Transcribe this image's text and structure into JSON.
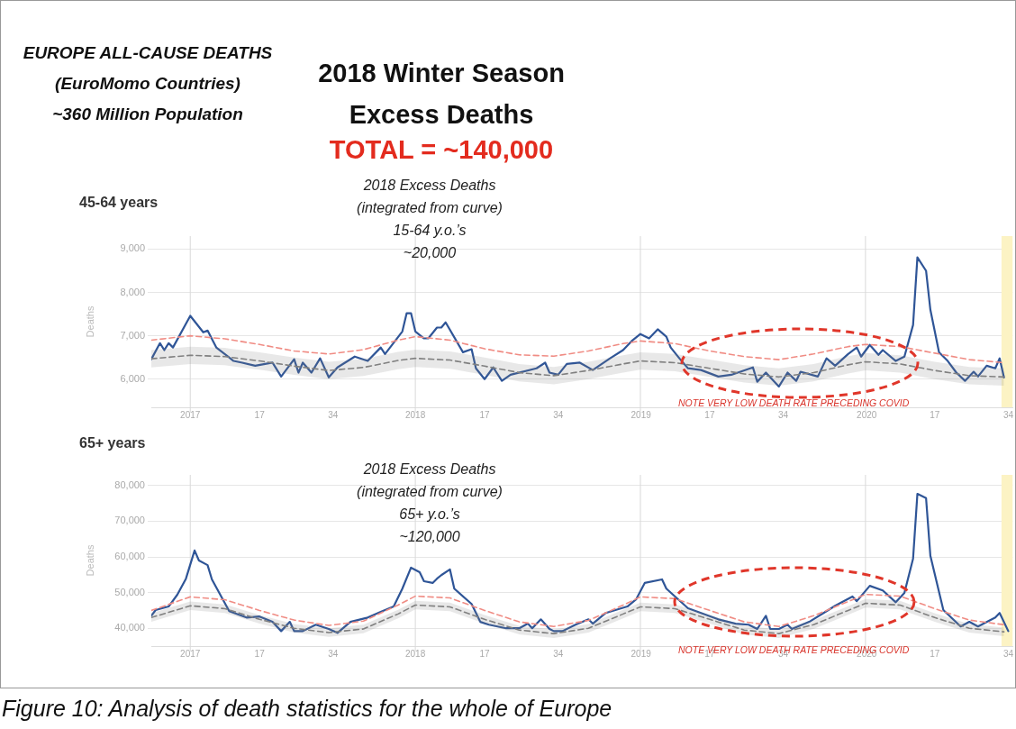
{
  "chart_data": [
    {
      "type": "other",
      "title": "2018 Winter Season Excess Deaths",
      "subtitle": "TOTAL = ~140,000",
      "annotations": [
        "EUROPE ALL-CAUSE DEATHS\n(EuroMomo Countries)\n~360 Million Population",
        "Figure 10: Analysis of death statistics for the whole of Europe"
      ]
    },
    {
      "type": "line",
      "title": "45-64 years",
      "ylabel": "Deaths",
      "xlim": [
        "2016-10-31",
        "2020-08-24"
      ],
      "xticks": [
        {
          "value": "2017-01-02",
          "label": "2017"
        },
        {
          "value": "2017-04-24",
          "label": "17"
        },
        {
          "value": "2017-08-21",
          "label": "34"
        },
        {
          "value": "2018-01-01",
          "label": "2018"
        },
        {
          "value": "2018-04-23",
          "label": "17"
        },
        {
          "value": "2018-08-20",
          "label": "34"
        },
        {
          "value": "2019-01-01",
          "label": "2019"
        },
        {
          "value": "2019-04-22",
          "label": "17"
        },
        {
          "value": "2019-08-19",
          "label": "34"
        },
        {
          "value": "2020-01-01",
          "label": "2020"
        },
        {
          "value": "2020-04-20",
          "label": "17"
        },
        {
          "value": "2020-08-17",
          "label": "34"
        }
      ],
      "ylim": [
        5350,
        9300
      ],
      "yticks": [
        {
          "value": 6000,
          "label": "6,000"
        },
        {
          "value": 7000,
          "label": "7,000"
        },
        {
          "value": 8000,
          "label": "8,000"
        },
        {
          "value": 9000,
          "label": "9,000"
        }
      ],
      "grid": "y",
      "marker": "none",
      "line_style": "solid",
      "ref_lines": [
        {
          "axis": "x",
          "value": "2017-01-02",
          "color": "#d9d9d9"
        },
        {
          "axis": "x",
          "value": "2018-01-01",
          "color": "#d9d9d9"
        },
        {
          "axis": "x",
          "value": "2018-12-31",
          "color": "#d9d9d9"
        },
        {
          "axis": "x",
          "value": "2019-12-30",
          "color": "#d9d9d9"
        }
      ],
      "bands": [
        {
          "axis": "x",
          "from": "2020-08-06",
          "to": "2020-08-24",
          "color": "#fcf3c4"
        }
      ],
      "annotations": [
        "2018 Excess Deaths\n(integrated from curve)\n15-64 y.o.’s\n~20,000",
        "NOTE VERY LOW DEATH RATE PRECEDING COVID"
      ],
      "series": [
        {
          "color": "#808080",
          "line_style": "dashed",
          "x": [
            "2016-10-31",
            "2017-01-02",
            "2017-02-27",
            "2017-04-24",
            "2017-06-19",
            "2017-08-14",
            "2017-10-09",
            "2017-12-04",
            "2018-01-01",
            "2018-02-26",
            "2018-04-23",
            "2018-06-18",
            "2018-08-13",
            "2018-10-08",
            "2018-12-03",
            "2018-12-31",
            "2019-02-25",
            "2019-04-22",
            "2019-06-17",
            "2019-08-12",
            "2019-10-07",
            "2019-12-02",
            "2019-12-30",
            "2020-02-24",
            "2020-04-20",
            "2020-06-15",
            "2020-08-10"
          ],
          "values": [
            6470,
            6550,
            6520,
            6420,
            6300,
            6200,
            6270,
            6430,
            6480,
            6440,
            6300,
            6150,
            6080,
            6200,
            6350,
            6420,
            6380,
            6250,
            6120,
            6050,
            6150,
            6330,
            6400,
            6350,
            6200,
            6080,
            6050
          ],
          "lower": [
            6270,
            6350,
            6320,
            6220,
            6100,
            6000,
            6070,
            6230,
            6280,
            6240,
            6100,
            5950,
            5880,
            6000,
            6150,
            6220,
            6180,
            6050,
            5920,
            5850,
            5950,
            6130,
            6200,
            6150,
            6000,
            5880,
            5850
          ],
          "upper": [
            6670,
            6750,
            6720,
            6620,
            6500,
            6400,
            6470,
            6630,
            6680,
            6640,
            6500,
            6350,
            6280,
            6400,
            6550,
            6620,
            6580,
            6450,
            6320,
            6250,
            6350,
            6530,
            6600,
            6550,
            6400,
            6280,
            6250
          ]
        },
        {
          "color": "#f08c84",
          "line_style": "dashed",
          "x": [
            "2016-10-31",
            "2017-01-02",
            "2017-02-27",
            "2017-04-24",
            "2017-06-19",
            "2017-08-14",
            "2017-10-09",
            "2017-12-04",
            "2018-01-01",
            "2018-02-26",
            "2018-04-23",
            "2018-06-18",
            "2018-08-13",
            "2018-10-08",
            "2018-12-03",
            "2018-12-31",
            "2019-02-25",
            "2019-04-22",
            "2019-06-17",
            "2019-08-12",
            "2019-10-07",
            "2019-12-02",
            "2019-12-30",
            "2020-02-24",
            "2020-04-20",
            "2020-06-15",
            "2020-08-10"
          ],
          "values": [
            6900,
            7000,
            6930,
            6800,
            6650,
            6580,
            6680,
            6900,
            6980,
            6900,
            6700,
            6560,
            6530,
            6650,
            6820,
            6880,
            6820,
            6650,
            6520,
            6450,
            6580,
            6750,
            6800,
            6750,
            6600,
            6450,
            6380
          ]
        },
        {
          "color": "#2f5597",
          "x": [
            "2016-10-31",
            "2016-11-14",
            "2016-11-21",
            "2016-11-28",
            "2016-12-05",
            "2017-01-02",
            "2017-01-23",
            "2017-01-30",
            "2017-02-13",
            "2017-03-13",
            "2017-03-27",
            "2017-04-17",
            "2017-05-15",
            "2017-05-29",
            "2017-06-19",
            "2017-06-26",
            "2017-07-03",
            "2017-07-17",
            "2017-07-31",
            "2017-08-14",
            "2017-08-28",
            "2017-09-25",
            "2017-10-16",
            "2017-11-06",
            "2017-11-13",
            "2017-12-11",
            "2017-12-18",
            "2017-12-25",
            "2018-01-01",
            "2018-01-15",
            "2018-01-22",
            "2018-02-05",
            "2018-02-12",
            "2018-02-19",
            "2018-03-19",
            "2018-04-02",
            "2018-04-09",
            "2018-04-23",
            "2018-05-07",
            "2018-05-21",
            "2018-06-04",
            "2018-07-16",
            "2018-07-30",
            "2018-08-06",
            "2018-08-20",
            "2018-09-03",
            "2018-09-24",
            "2018-10-15",
            "2018-11-12",
            "2018-12-03",
            "2018-12-17",
            "2018-12-31",
            "2019-01-14",
            "2019-01-28",
            "2019-02-11",
            "2019-02-18",
            "2019-03-04",
            "2019-03-18",
            "2019-04-08",
            "2019-05-06",
            "2019-05-27",
            "2019-07-01",
            "2019-07-08",
            "2019-07-22",
            "2019-08-12",
            "2019-08-26",
            "2019-09-09",
            "2019-09-16",
            "2019-10-14",
            "2019-10-28",
            "2019-11-11",
            "2019-12-02",
            "2019-12-16",
            "2019-12-23",
            "2020-01-06",
            "2020-01-20",
            "2020-01-27",
            "2020-02-17",
            "2020-03-02",
            "2020-03-16",
            "2020-03-23",
            "2020-04-06",
            "2020-04-13",
            "2020-04-27",
            "2020-05-11",
            "2020-05-25",
            "2020-06-08",
            "2020-06-22",
            "2020-06-29",
            "2020-07-13",
            "2020-07-27",
            "2020-08-03",
            "2020-08-10"
          ],
          "values": [
            6460,
            6830,
            6670,
            6830,
            6730,
            7460,
            7080,
            7120,
            6730,
            6420,
            6380,
            6310,
            6380,
            6060,
            6460,
            6150,
            6380,
            6150,
            6480,
            6040,
            6270,
            6520,
            6420,
            6730,
            6580,
            7100,
            7520,
            7520,
            7100,
            6940,
            6940,
            7190,
            7190,
            7310,
            6620,
            6690,
            6250,
            6000,
            6270,
            5960,
            6100,
            6250,
            6380,
            6150,
            6100,
            6350,
            6380,
            6210,
            6480,
            6670,
            6880,
            7040,
            6940,
            7150,
            6980,
            6730,
            6480,
            6250,
            6210,
            6060,
            6100,
            6270,
            5940,
            6150,
            5830,
            6150,
            5960,
            6170,
            6060,
            6480,
            6310,
            6580,
            6730,
            6520,
            6790,
            6560,
            6670,
            6420,
            6520,
            7250,
            8810,
            8500,
            7600,
            6620,
            6420,
            6150,
            5960,
            6170,
            6060,
            6310,
            6250,
            6480,
            6040
          ]
        }
      ]
    },
    {
      "type": "line",
      "title": "65+ years",
      "ylabel": "Deaths",
      "xlim": [
        "2016-10-31",
        "2020-08-24"
      ],
      "xticks": [
        {
          "value": "2017-01-02",
          "label": "2017"
        },
        {
          "value": "2017-04-24",
          "label": "17"
        },
        {
          "value": "2017-08-21",
          "label": "34"
        },
        {
          "value": "2018-01-01",
          "label": "2018"
        },
        {
          "value": "2018-04-23",
          "label": "17"
        },
        {
          "value": "2018-08-20",
          "label": "34"
        },
        {
          "value": "2019-01-01",
          "label": "2019"
        },
        {
          "value": "2019-04-22",
          "label": "17"
        },
        {
          "value": "2019-08-19",
          "label": "34"
        },
        {
          "value": "2020-01-01",
          "label": "2020"
        },
        {
          "value": "2020-04-20",
          "label": "17"
        },
        {
          "value": "2020-08-17",
          "label": "34"
        }
      ],
      "ylim": [
        35000,
        83000
      ],
      "yticks": [
        {
          "value": 40000,
          "label": "40,000"
        },
        {
          "value": 50000,
          "label": "50,000"
        },
        {
          "value": 60000,
          "label": "60,000"
        },
        {
          "value": 70000,
          "label": "70,000"
        },
        {
          "value": 80000,
          "label": "80,000"
        }
      ],
      "grid": "y",
      "marker": "none",
      "line_style": "solid",
      "ref_lines": [
        {
          "axis": "x",
          "value": "2017-01-02",
          "color": "#d9d9d9"
        },
        {
          "axis": "x",
          "value": "2018-01-01",
          "color": "#d9d9d9"
        },
        {
          "axis": "x",
          "value": "2018-12-31",
          "color": "#d9d9d9"
        },
        {
          "axis": "x",
          "value": "2019-12-30",
          "color": "#d9d9d9"
        }
      ],
      "bands": [
        {
          "axis": "x",
          "from": "2020-08-06",
          "to": "2020-08-24",
          "color": "#fcf3c4"
        }
      ],
      "annotations": [
        "2018 Excess Deaths\n(integrated from curve)\n65+ y.o.’s\n~120,000",
        "NOTE VERY LOW DEATH RATE PRECEDING COVID"
      ],
      "series": [
        {
          "color": "#808080",
          "line_style": "dashed",
          "x": [
            "2016-10-31",
            "2017-01-02",
            "2017-02-27",
            "2017-04-24",
            "2017-06-19",
            "2017-08-14",
            "2017-10-09",
            "2017-12-04",
            "2018-01-01",
            "2018-02-26",
            "2018-04-23",
            "2018-06-18",
            "2018-08-13",
            "2018-10-08",
            "2018-12-03",
            "2018-12-31",
            "2019-02-25",
            "2019-04-22",
            "2019-06-17",
            "2019-08-12",
            "2019-10-07",
            "2019-12-02",
            "2019-12-30",
            "2020-02-24",
            "2020-04-20",
            "2020-06-15",
            "2020-08-10"
          ],
          "values": [
            43000,
            46300,
            45500,
            42500,
            40000,
            38800,
            39800,
            44000,
            46500,
            46000,
            42500,
            39500,
            38500,
            40000,
            44000,
            46000,
            45500,
            42500,
            39500,
            38500,
            41000,
            45000,
            47000,
            46500,
            43000,
            40000,
            39000
          ],
          "lower": [
            41800,
            45100,
            44300,
            41300,
            38800,
            37600,
            38600,
            42800,
            45300,
            44800,
            41300,
            38300,
            37300,
            38800,
            42800,
            44800,
            44300,
            41300,
            38300,
            37300,
            39800,
            43800,
            45800,
            45300,
            41800,
            38800,
            37800
          ],
          "upper": [
            44200,
            47500,
            46700,
            43700,
            41200,
            40000,
            41000,
            45200,
            47700,
            47200,
            43700,
            40700,
            39700,
            41200,
            45200,
            47200,
            46700,
            43700,
            40700,
            39700,
            42200,
            46200,
            48200,
            47700,
            44200,
            41200,
            40200
          ]
        },
        {
          "color": "#f08c84",
          "line_style": "dashed",
          "x": [
            "2016-10-31",
            "2017-01-02",
            "2017-02-27",
            "2017-04-24",
            "2017-06-19",
            "2017-08-14",
            "2017-10-09",
            "2017-12-04",
            "2018-01-01",
            "2018-02-26",
            "2018-04-23",
            "2018-06-18",
            "2018-08-13",
            "2018-10-08",
            "2018-12-03",
            "2018-12-31",
            "2019-02-25",
            "2019-04-22",
            "2019-06-17",
            "2019-08-12",
            "2019-10-07",
            "2019-12-02",
            "2019-12-30",
            "2020-02-24",
            "2020-04-20",
            "2020-06-15",
            "2020-08-10"
          ],
          "values": [
            45000,
            48800,
            48000,
            45000,
            42300,
            40800,
            42000,
            46500,
            49000,
            48500,
            45000,
            41800,
            40500,
            42200,
            46500,
            48800,
            48300,
            45000,
            41800,
            40500,
            43500,
            47500,
            49500,
            49000,
            45500,
            42300,
            41000
          ]
        },
        {
          "color": "#2f5597",
          "x": [
            "2016-10-31",
            "2016-11-07",
            "2016-11-28",
            "2016-12-12",
            "2016-12-26",
            "2017-01-09",
            "2017-01-16",
            "2017-01-30",
            "2017-02-06",
            "2017-03-06",
            "2017-04-03",
            "2017-04-24",
            "2017-05-15",
            "2017-05-29",
            "2017-06-12",
            "2017-06-19",
            "2017-07-03",
            "2017-07-24",
            "2017-08-14",
            "2017-08-28",
            "2017-09-18",
            "2017-10-16",
            "2017-11-06",
            "2017-11-27",
            "2017-12-11",
            "2017-12-25",
            "2018-01-08",
            "2018-01-15",
            "2018-01-29",
            "2018-02-05",
            "2018-02-12",
            "2018-02-26",
            "2018-03-05",
            "2018-04-02",
            "2018-04-16",
            "2018-04-30",
            "2018-05-28",
            "2018-06-18",
            "2018-07-02",
            "2018-07-09",
            "2018-07-23",
            "2018-08-06",
            "2018-08-13",
            "2018-08-27",
            "2018-09-17",
            "2018-10-08",
            "2018-10-15",
            "2018-11-05",
            "2018-12-10",
            "2018-12-24",
            "2019-01-07",
            "2019-02-04",
            "2019-02-11",
            "2019-03-18",
            "2019-04-08",
            "2019-05-06",
            "2019-06-03",
            "2019-06-24",
            "2019-07-08",
            "2019-07-22",
            "2019-07-29",
            "2019-08-12",
            "2019-08-26",
            "2019-09-02",
            "2019-09-30",
            "2019-10-28",
            "2019-11-11",
            "2019-12-09",
            "2019-12-16",
            "2020-01-06",
            "2020-01-27",
            "2020-02-17",
            "2020-03-02",
            "2020-03-16",
            "2020-03-23",
            "2020-04-06",
            "2020-04-13",
            "2020-05-04",
            "2020-06-01",
            "2020-06-15",
            "2020-06-29",
            "2020-07-27",
            "2020-08-03",
            "2020-08-17"
          ],
          "values": [
            43500,
            45100,
            46100,
            49400,
            53900,
            61800,
            59000,
            57700,
            53700,
            44800,
            43000,
            43300,
            41800,
            39200,
            41800,
            39200,
            39200,
            41000,
            39800,
            38700,
            41800,
            43000,
            44600,
            46100,
            51100,
            57000,
            55700,
            53200,
            52700,
            53900,
            54900,
            56500,
            51100,
            46800,
            41800,
            41000,
            40000,
            40000,
            41300,
            40000,
            42500,
            39800,
            39200,
            39200,
            41000,
            42500,
            41300,
            44300,
            46100,
            48100,
            52700,
            53700,
            51100,
            45600,
            44300,
            42500,
            41300,
            41000,
            39800,
            43500,
            39800,
            39800,
            41000,
            39800,
            41800,
            44800,
            46300,
            48900,
            47600,
            51900,
            50600,
            47300,
            49900,
            59500,
            77700,
            76500,
            60300,
            45100,
            40500,
            41800,
            40500,
            43000,
            44300,
            39200
          ]
        }
      ]
    }
  ]
}
